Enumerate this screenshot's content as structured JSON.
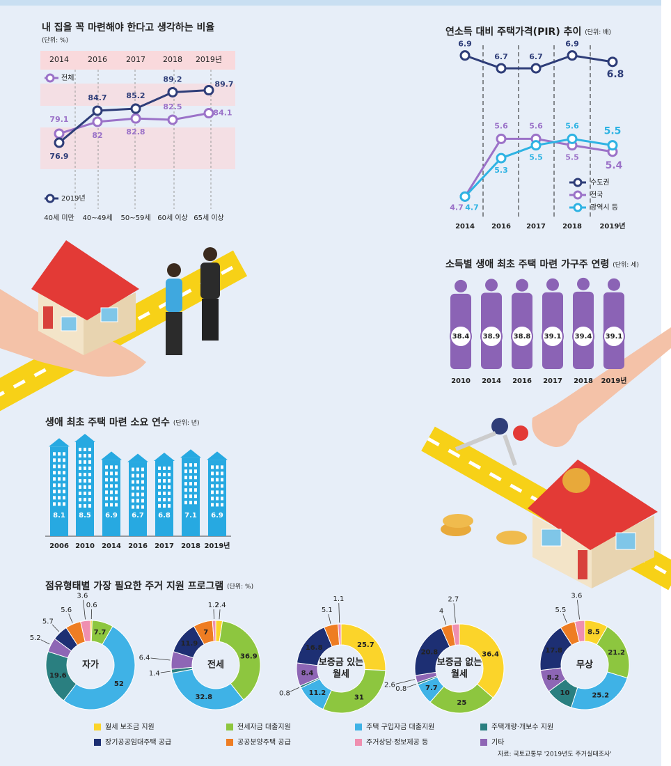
{
  "chart_data": [
    {
      "type": "line",
      "title": "내 집을 꼭 마련해야 한다고 생각하는 비율",
      "subtitle": "(단위: %)",
      "categories": [
        "2014",
        "2016",
        "2017",
        "2018",
        "2019년"
      ],
      "categories_bottom": [
        "40세 미만",
        "40~49세",
        "50~59세",
        "60세 이상",
        "65세 이상"
      ],
      "ylim": [
        74,
        92
      ],
      "series": [
        {
          "name": "전체",
          "color": "#9b72c8",
          "values": [
            79.1,
            82.0,
            82.8,
            82.5,
            84.1
          ]
        },
        {
          "name": "2019년",
          "color": "#2e3d78",
          "xaxis": "bottom",
          "values": [
            76.9,
            84.7,
            85.2,
            89.2,
            89.7
          ]
        }
      ]
    },
    {
      "type": "line",
      "title": "연소득 대비 주택가격(PIR) 추이",
      "subtitle": "(단위: 배)",
      "categories": [
        "2014",
        "2016",
        "2017",
        "2018",
        "2019년"
      ],
      "ylim": [
        4.4,
        7.2
      ],
      "series": [
        {
          "name": "수도권",
          "color": "#2e3d78",
          "values": [
            6.9,
            6.7,
            6.7,
            6.9,
            6.8
          ]
        },
        {
          "name": "전국",
          "color": "#9b72c8",
          "values": [
            4.7,
            5.6,
            5.6,
            5.5,
            5.4
          ]
        },
        {
          "name": "광역시 등",
          "color": "#2fb3e3",
          "values": [
            4.7,
            5.3,
            5.5,
            5.6,
            5.5
          ]
        }
      ]
    },
    {
      "type": "pictogram",
      "title": "소득별 생애 최초 주택 마련 가구주 연령",
      "subtitle": "(단위: 세)",
      "categories": [
        "2010",
        "2014",
        "2016",
        "2017",
        "2018",
        "2019년"
      ],
      "values": [
        38.4,
        38.9,
        38.8,
        39.1,
        39.4,
        39.1
      ],
      "ylim": [
        0,
        40
      ],
      "color": "#8b63b5"
    },
    {
      "type": "bar",
      "title": "생애 최초 주택 마련 소요 연수",
      "subtitle": "(단위: 년)",
      "categories": [
        "2006",
        "2010",
        "2014",
        "2016",
        "2017",
        "2018",
        "2019년"
      ],
      "values": [
        8.1,
        8.5,
        6.9,
        6.7,
        6.8,
        7.1,
        6.9
      ],
      "ylim": [
        0,
        9
      ],
      "color": "#27a9e1"
    },
    {
      "type": "donut",
      "title": "점유형태별 가장 필요한 주거 지원 프로그램",
      "subtitle": "(단위: %)",
      "categories": [
        "월세 보조금 지원",
        "전세자금 대출지원",
        "주택 구입자금 대출지원",
        "주택개량·개보수 지원",
        "기타",
        "장기공공임대주택 공급",
        "공공분양주택 공급",
        "주거상담·정보제공 등"
      ],
      "colors": [
        "#fbd42a",
        "#8dc63f",
        "#3fb2e6",
        "#2a7f80",
        "#8e66b5",
        "#1d2f73",
        "#ee7d23",
        "#ef8fb0"
      ],
      "pies": [
        {
          "label": "자가",
          "values": [
            0.6,
            7.7,
            52.0,
            19.6,
            5.2,
            5.7,
            5.6,
            3.6
          ]
        },
        {
          "label": "전세",
          "values": [
            2.4,
            36.9,
            32.8,
            1.4,
            6.4,
            11.9,
            7.0,
            1.2
          ]
        },
        {
          "label": "보증금 있는 월세",
          "values": [
            25.7,
            31.0,
            11.2,
            0.8,
            8.4,
            16.8,
            5.1,
            1.1
          ]
        },
        {
          "label": "보증금 없는 월세",
          "values": [
            36.4,
            25.0,
            7.7,
            0.8,
            2.6,
            20.8,
            4.0,
            2.7
          ]
        },
        {
          "label": "무상",
          "values": [
            8.5,
            21.2,
            25.2,
            10.0,
            8.2,
            17.8,
            5.5,
            3.6
          ]
        }
      ],
      "source": "자료: 국토교통부 '2019년도 주거실태조사'"
    }
  ]
}
